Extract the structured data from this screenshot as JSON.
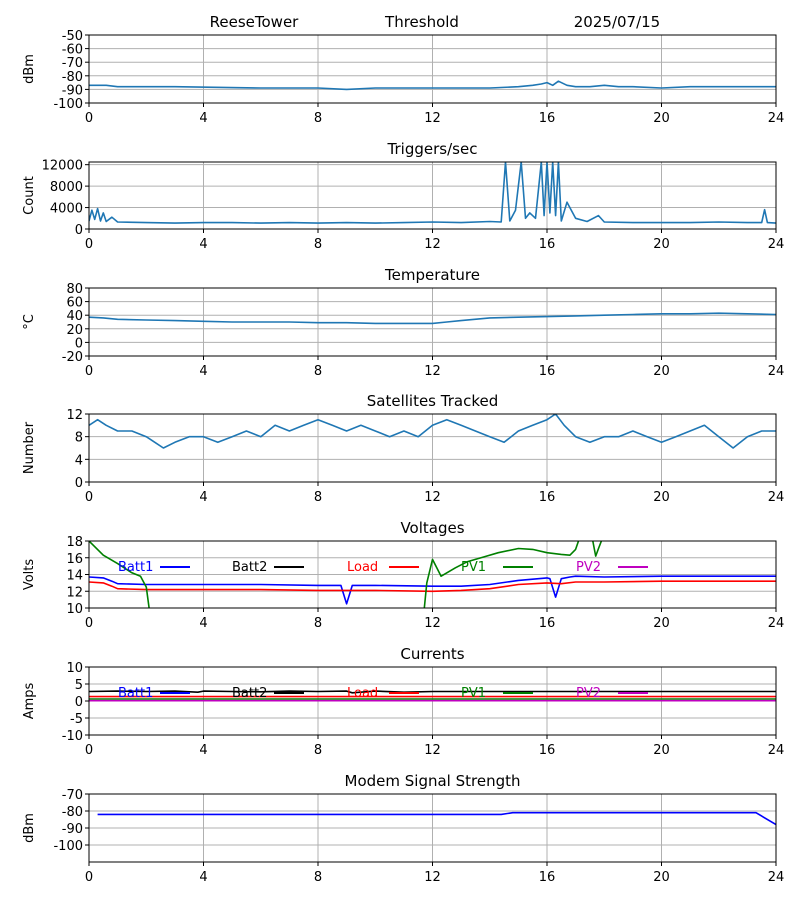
{
  "header": {
    "station": "ReeseTower",
    "mode": "Threshold",
    "date": "2025/07/15"
  },
  "colors": {
    "mpl_blue": "#1f77b4",
    "grid": "#b0b0b0",
    "batt1": "#0000ff",
    "batt2": "#000000",
    "load": "#ff0000",
    "pv1": "#008000",
    "pv2": "#bf00bf"
  },
  "x_ticks": [
    "0",
    "4",
    "8",
    "12",
    "16",
    "20",
    "24"
  ],
  "chart_data": [
    {
      "type": "line",
      "title": "",
      "xlabel": "",
      "ylabel": "dBm",
      "xlim": [
        0,
        24
      ],
      "ylim": [
        -100,
        -50
      ],
      "yticks": [
        "-50",
        "-60",
        "-70",
        "-80",
        "-90",
        "-100"
      ],
      "series": [
        {
          "color": "#1f77b4",
          "x": [
            0,
            0.6,
            1,
            3,
            6,
            8,
            9,
            10,
            11,
            12,
            13,
            14,
            15,
            15.5,
            15.8,
            16,
            16.2,
            16.4,
            16.7,
            17,
            17.5,
            18,
            18.5,
            19,
            20,
            21,
            22,
            23,
            24
          ],
          "y": [
            -87,
            -87,
            -88,
            -88,
            -89,
            -89,
            -90,
            -89,
            -89,
            -89,
            -89,
            -89,
            -88,
            -87,
            -86,
            -85,
            -87,
            -84,
            -87,
            -88,
            -88,
            -87,
            -88,
            -88,
            -89,
            -88,
            -88,
            -88,
            -88
          ]
        }
      ]
    },
    {
      "type": "line",
      "title": "Triggers/sec",
      "xlabel": "",
      "ylabel": "Count",
      "xlim": [
        0,
        24
      ],
      "ylim": [
        0,
        12500
      ],
      "yticks": [
        "0",
        "4000",
        "8000",
        "12000"
      ],
      "series": [
        {
          "color": "#1f77b4",
          "x": [
            0,
            0.1,
            0.2,
            0.3,
            0.4,
            0.5,
            0.6,
            0.8,
            1,
            2,
            3,
            4,
            5,
            6,
            7,
            8,
            9,
            10,
            11,
            12,
            13,
            14,
            14.4,
            14.55,
            14.7,
            14.9,
            15.1,
            15.25,
            15.4,
            15.6,
            15.8,
            15.9,
            16,
            16.1,
            16.2,
            16.3,
            16.4,
            16.5,
            16.7,
            17,
            17.4,
            17.8,
            18,
            19,
            20,
            21,
            22,
            23,
            23.5,
            23.6,
            23.7,
            24
          ],
          "y": [
            1500,
            3500,
            1800,
            3800,
            1500,
            3000,
            1400,
            2200,
            1300,
            1200,
            1100,
            1200,
            1200,
            1100,
            1200,
            1100,
            1200,
            1100,
            1200,
            1300,
            1200,
            1400,
            1300,
            12500,
            1500,
            3500,
            12500,
            2000,
            3000,
            2000,
            12500,
            2500,
            12500,
            3000,
            12500,
            2500,
            12500,
            1500,
            5000,
            2000,
            1400,
            2500,
            1300,
            1200,
            1200,
            1200,
            1300,
            1200,
            1200,
            3600,
            1200,
            1100
          ]
        }
      ]
    },
    {
      "type": "line",
      "title": "Temperature",
      "xlabel": "",
      "ylabel": "°C",
      "xlim": [
        0,
        24
      ],
      "ylim": [
        -20,
        80
      ],
      "yticks": [
        "80",
        "60",
        "40",
        "20",
        "0",
        "-20"
      ],
      "series": [
        {
          "color": "#1f77b4",
          "x": [
            0,
            0.5,
            1,
            2,
            3,
            4,
            5,
            6,
            7,
            8,
            9,
            10,
            11,
            12,
            12.5,
            13,
            14,
            15,
            16,
            17,
            18,
            19,
            20,
            21,
            22,
            23,
            24
          ],
          "y": [
            37,
            36,
            34,
            33,
            32,
            31,
            30,
            30,
            30,
            29,
            29,
            28,
            28,
            28,
            30,
            32,
            36,
            37,
            38,
            39,
            40,
            41,
            42,
            42,
            43,
            42,
            41
          ]
        }
      ]
    },
    {
      "type": "line",
      "title": "Satellites Tracked",
      "xlabel": "",
      "ylabel": "Number",
      "xlim": [
        0,
        24
      ],
      "ylim": [
        0,
        12
      ],
      "yticks": [
        "0",
        "4",
        "8",
        "12"
      ],
      "series": [
        {
          "color": "#1f77b4",
          "x": [
            0,
            0.3,
            0.6,
            1,
            1.5,
            2,
            2.3,
            2.6,
            3,
            3.5,
            4,
            4.5,
            5,
            5.5,
            6,
            6.5,
            7,
            7.5,
            8,
            8.5,
            9,
            9.5,
            10,
            10.5,
            11,
            11.5,
            12,
            12.5,
            13,
            13.5,
            14,
            14.5,
            15,
            15.5,
            16,
            16.3,
            16.6,
            17,
            17.5,
            18,
            18.5,
            19,
            19.5,
            20,
            20.5,
            21,
            21.5,
            22,
            22.5,
            23,
            23.5,
            24
          ],
          "y": [
            10,
            11,
            10,
            9,
            9,
            8,
            7,
            6,
            7,
            8,
            8,
            7,
            8,
            9,
            8,
            10,
            9,
            10,
            11,
            10,
            9,
            10,
            9,
            8,
            9,
            8,
            10,
            11,
            10,
            9,
            8,
            7,
            9,
            10,
            11,
            12,
            10,
            8,
            7,
            8,
            8,
            9,
            8,
            7,
            8,
            9,
            10,
            8,
            6,
            8,
            9,
            9
          ]
        }
      ]
    },
    {
      "type": "line",
      "title": "Voltages",
      "xlabel": "",
      "ylabel": "Volts",
      "xlim": [
        0,
        24
      ],
      "ylim": [
        10,
        18
      ],
      "yticks": [
        "10",
        "12",
        "14",
        "16",
        "18"
      ],
      "legend": [
        "Batt1",
        "Batt2",
        "Load",
        "PV1",
        "PV2"
      ],
      "series": [
        {
          "name": "Batt1",
          "color": "#0000ff",
          "x": [
            0,
            0.5,
            0.8,
            1,
            2,
            4,
            6,
            8,
            8.8,
            9,
            9.2,
            10,
            12,
            13,
            14,
            15,
            16,
            16.1,
            16.3,
            16.5,
            16.8,
            17,
            18,
            20,
            22,
            24
          ],
          "y": [
            13.7,
            13.6,
            13.2,
            12.9,
            12.8,
            12.8,
            12.8,
            12.7,
            12.7,
            10.5,
            12.7,
            12.7,
            12.6,
            12.6,
            12.8,
            13.3,
            13.6,
            13.5,
            11.3,
            13.5,
            13.7,
            13.8,
            13.7,
            13.8,
            13.8,
            13.8
          ]
        },
        {
          "name": "Load",
          "color": "#ff0000",
          "x": [
            0,
            0.5,
            0.8,
            1,
            2,
            4,
            6,
            8,
            10,
            12,
            13,
            14,
            15,
            16,
            16.5,
            17,
            18,
            20,
            22,
            24
          ],
          "y": [
            13.1,
            13.0,
            12.6,
            12.3,
            12.2,
            12.2,
            12.2,
            12.1,
            12.1,
            12.0,
            12.1,
            12.3,
            12.8,
            13.0,
            12.9,
            13.1,
            13.1,
            13.2,
            13.2,
            13.2
          ]
        },
        {
          "name": "PV1",
          "color": "#008000",
          "x": [
            0,
            0.5,
            1,
            1.5,
            1.8,
            2,
            2.1,
            2.2
          ],
          "y": [
            18,
            16.3,
            15.3,
            14.2,
            13.8,
            12.5,
            10,
            9.5
          ]
        },
        {
          "name": "PV1",
          "color": "#008000",
          "x": [
            11.7,
            11.8,
            12,
            12.3,
            12.8,
            13.2,
            13.8,
            14.3,
            15,
            15.5,
            16,
            16.5,
            16.8,
            17,
            17.1
          ],
          "y": [
            9.5,
            13,
            15.8,
            13.8,
            14.8,
            15.5,
            16.1,
            16.6,
            17.1,
            17.0,
            16.6,
            16.4,
            16.3,
            17,
            18
          ]
        },
        {
          "name": "PV1",
          "color": "#008000",
          "x": [
            17.6,
            17.7,
            17.8,
            17.9
          ],
          "y": [
            18,
            16.2,
            17.1,
            18
          ]
        }
      ]
    },
    {
      "type": "line",
      "title": "Currents",
      "xlabel": "",
      "ylabel": "Amps",
      "xlim": [
        0,
        24
      ],
      "ylim": [
        -10,
        10
      ],
      "yticks": [
        "10",
        "5",
        "0",
        "-5",
        "-10"
      ],
      "legend": [
        "Batt1",
        "Batt2",
        "Load",
        "PV1",
        "PV2"
      ],
      "series": [
        {
          "name": "Batt2",
          "color": "#000000",
          "x": [
            0,
            1,
            2,
            3,
            3.8,
            4,
            5,
            6,
            7,
            8,
            9,
            9.2,
            10,
            11,
            12,
            13,
            14,
            16,
            18,
            20,
            22,
            24
          ],
          "y": [
            2.8,
            2.9,
            2.8,
            2.9,
            2.6,
            2.9,
            2.8,
            2.7,
            2.9,
            2.8,
            2.9,
            2.4,
            2.9,
            2.6,
            2.8,
            2.8,
            2.8,
            2.8,
            2.8,
            2.8,
            2.8,
            2.8
          ]
        },
        {
          "name": "Load",
          "color": "#ff0000",
          "x": [
            0,
            24
          ],
          "y": [
            1.3,
            1.3
          ]
        },
        {
          "name": "PV1",
          "color": "#008000",
          "x": [
            0,
            24
          ],
          "y": [
            0.6,
            0.6
          ]
        },
        {
          "name": "PV2",
          "color": "#bf00bf",
          "x": [
            0,
            24
          ],
          "y": [
            0.1,
            0.1
          ]
        }
      ]
    },
    {
      "type": "line",
      "title": "Modem Signal Strength",
      "xlabel": "",
      "ylabel": "dBm",
      "xlim": [
        0,
        24
      ],
      "ylim": [
        -110,
        -70
      ],
      "yticks": [
        "-70",
        "-80",
        "-90",
        "-100"
      ],
      "series": [
        {
          "color": "#0000ff",
          "x": [
            0.3,
            14.4,
            14.8,
            23.3,
            24
          ],
          "y": [
            -82,
            -82,
            -81,
            -81,
            -88
          ]
        }
      ]
    }
  ]
}
